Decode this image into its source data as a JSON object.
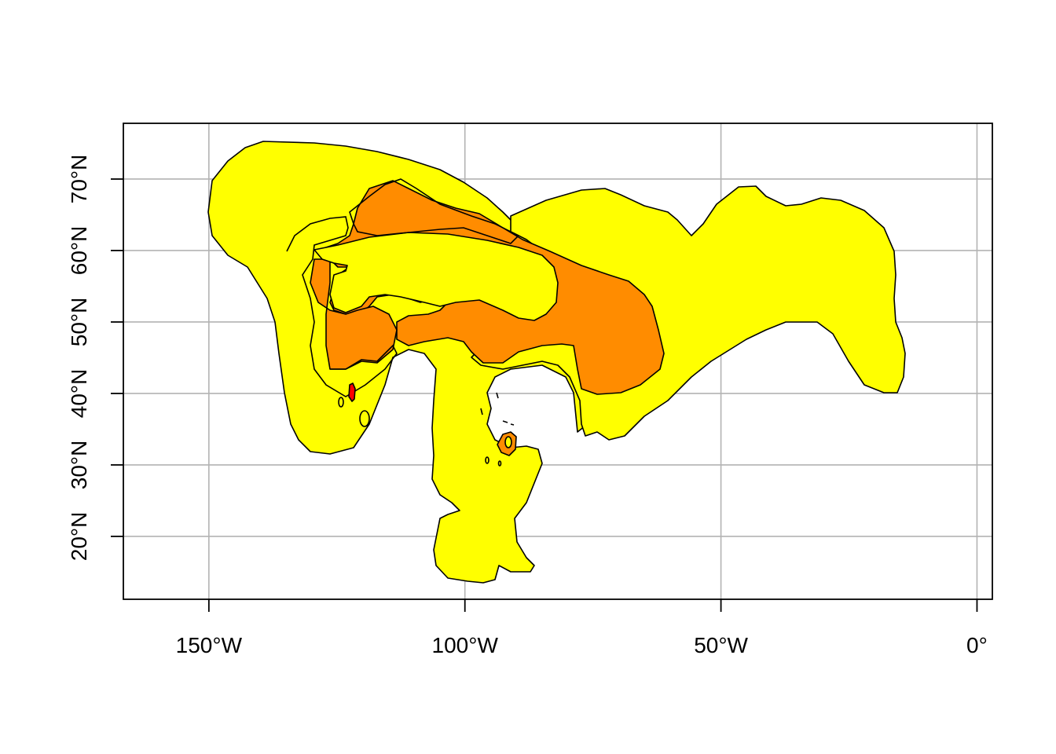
{
  "map": {
    "colors": {
      "level_low": "#FFFF00",
      "level_mid": "#FF8C00",
      "level_high": "#FF0000"
    },
    "x_ticks": [
      {
        "value": -150,
        "label": "150°W"
      },
      {
        "value": -100,
        "label": "100°W"
      },
      {
        "value": -50,
        "label": "50°W"
      },
      {
        "value": 0,
        "label": "0°"
      }
    ],
    "y_ticks": [
      {
        "value": 20,
        "label": "20°N"
      },
      {
        "value": 30,
        "label": "30°N"
      },
      {
        "value": 40,
        "label": "40°N"
      },
      {
        "value": 50,
        "label": "50°N"
      },
      {
        "value": 60,
        "label": "60°N"
      },
      {
        "value": 70,
        "label": "70°N"
      }
    ],
    "x_range": [
      -166.7,
      3.0
    ],
    "y_range": [
      11.2,
      77.8
    ],
    "grid": true
  }
}
